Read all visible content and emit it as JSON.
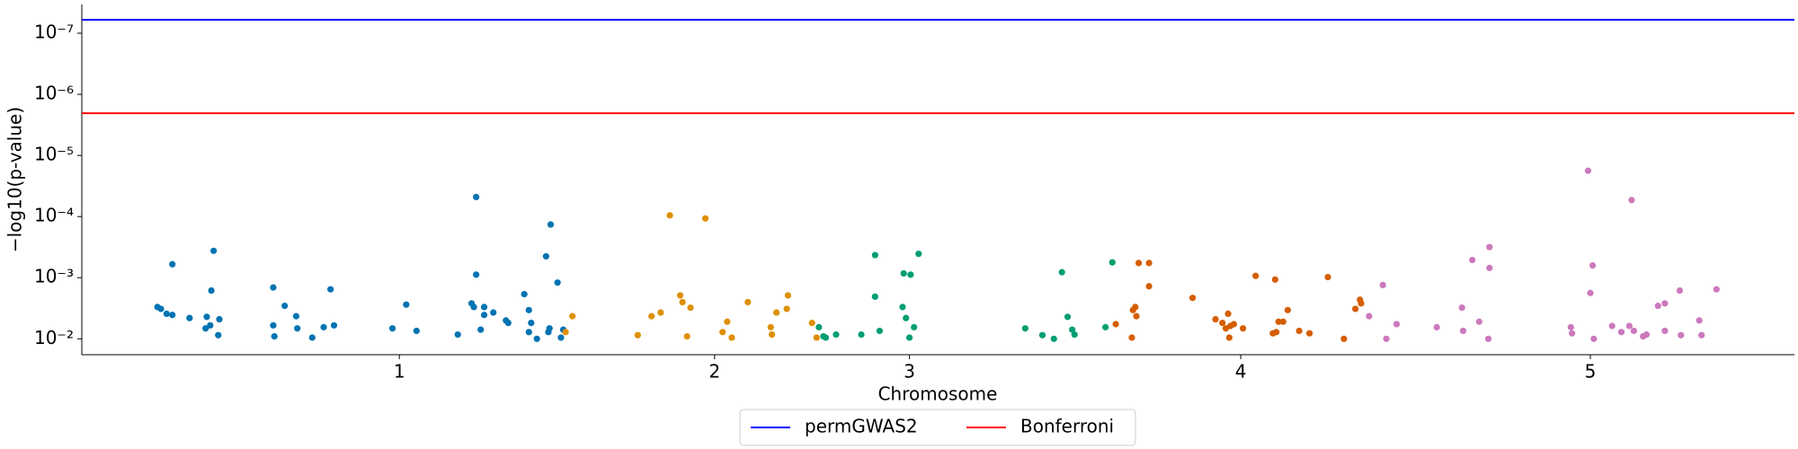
{
  "chart_data": {
    "type": "scatter",
    "xlabel": "Chromosome",
    "ylabel": "−log10(p-value)",
    "xlim": [
      0,
      1494
    ],
    "xticks": [
      {
        "value": 277,
        "label": "1"
      },
      {
        "value": 552,
        "label": "2"
      },
      {
        "value": 722,
        "label": "3"
      },
      {
        "value": 1011,
        "label": "4"
      },
      {
        "value": 1316,
        "label": "5"
      }
    ],
    "ylim": [
      1.74,
      7.47
    ],
    "yticks": [
      {
        "value": 2,
        "label": "10⁻²"
      },
      {
        "value": 3,
        "label": "10⁻³"
      },
      {
        "value": 4,
        "label": "10⁻⁴"
      },
      {
        "value": 5,
        "label": "10⁻⁵"
      },
      {
        "value": 6,
        "label": "10⁻⁶"
      },
      {
        "value": 7,
        "label": "10⁻⁷"
      }
    ],
    "legend": "below",
    "hlines": [
      {
        "name": "permGWAS2",
        "color": "#0000ff",
        "value": 7.22
      },
      {
        "name": "Bonferroni",
        "color": "#ff0000",
        "value": 5.69
      }
    ],
    "series": [
      {
        "color": "#0173b2",
        "x": [
          66,
          69,
          74,
          79,
          79,
          94,
          108,
          109,
          113,
          115,
          112,
          119,
          120,
          167,
          167,
          168,
          177,
          187,
          188,
          201,
          211,
          217,
          220,
          271,
          283,
          292,
          328,
          340,
          342,
          344,
          344,
          348,
          351,
          351,
          359,
          370,
          372,
          386,
          390,
          390,
          392,
          397,
          405,
          407,
          408,
          409,
          415,
          418,
          420
        ],
        "values": [
          2.52,
          2.49,
          2.41,
          2.39,
          3.22,
          2.34,
          2.17,
          2.36,
          2.79,
          3.44,
          2.22,
          2.06,
          2.32,
          2.84,
          2.22,
          2.04,
          2.54,
          2.37,
          2.17,
          2.02,
          2.19,
          2.81,
          2.22,
          2.17,
          2.56,
          2.13,
          2.07,
          2.58,
          2.52,
          4.32,
          3.05,
          2.15,
          2.52,
          2.39,
          2.43,
          2.3,
          2.26,
          2.73,
          2.47,
          2.11,
          2.26,
          2.0,
          3.35,
          2.11,
          2.17,
          3.87,
          2.92,
          2.02,
          2.15
        ]
      },
      {
        "color": "#de8f05",
        "x": [
          422,
          428,
          485,
          497,
          505,
          513,
          522,
          524,
          528,
          531,
          544,
          559,
          563,
          567,
          581,
          601,
          602,
          606,
          615,
          616,
          637,
          641
        ],
        "values": [
          2.11,
          2.37,
          2.06,
          2.37,
          2.43,
          4.02,
          2.71,
          2.6,
          2.04,
          2.51,
          3.97,
          2.11,
          2.28,
          2.02,
          2.6,
          2.19,
          2.07,
          2.43,
          2.49,
          2.71,
          2.26,
          2.02
        ]
      },
      {
        "color": "#029e73",
        "x": [
          643,
          647,
          649,
          658,
          680,
          692,
          692,
          696,
          716,
          717,
          719,
          722,
          723,
          726,
          730,
          823,
          838,
          848,
          855,
          860,
          864,
          866,
          893,
          899
        ],
        "values": [
          2.19,
          2.04,
          2.02,
          2.07,
          2.07,
          2.69,
          3.37,
          2.13,
          2.52,
          3.07,
          2.34,
          2.02,
          3.05,
          2.19,
          3.39,
          2.17,
          2.06,
          2.0,
          3.09,
          2.36,
          2.15,
          2.07,
          2.19,
          3.25
        ]
      },
      {
        "color": "#d55e00",
        "x": [
          902,
          916,
          917,
          919,
          920,
          922,
          931,
          931,
          969,
          989,
          995,
          998,
          1000,
          1001,
          1002,
          1005,
          1013,
          1024,
          1039,
          1041,
          1042,
          1044,
          1048,
          1052,
          1062,
          1071,
          1087,
          1101,
          1111,
          1115,
          1116
        ],
        "values": [
          2.24,
          2.02,
          2.47,
          2.52,
          2.37,
          3.24,
          2.86,
          3.24,
          2.67,
          2.32,
          2.26,
          2.17,
          2.41,
          2.02,
          2.21,
          2.24,
          2.17,
          3.03,
          2.09,
          2.97,
          2.11,
          2.28,
          2.28,
          2.47,
          2.13,
          2.09,
          3.01,
          2.0,
          2.49,
          2.64,
          2.58
        ]
      },
      {
        "color": "#cc78bc",
        "x": [
          1123,
          1135,
          1138,
          1147,
          1182,
          1204,
          1205,
          1213,
          1219,
          1227,
          1228,
          1228,
          1299,
          1300,
          1314,
          1316,
          1318,
          1319,
          1335,
          1343,
          1350,
          1352,
          1354,
          1362,
          1365,
          1375,
          1381,
          1381,
          1394,
          1395,
          1411,
          1413,
          1426
        ],
        "values": [
          2.37,
          2.88,
          2.0,
          2.24,
          2.19,
          2.51,
          2.13,
          3.29,
          2.28,
          2.0,
          3.5,
          3.16,
          2.19,
          2.09,
          4.75,
          2.75,
          3.2,
          2.0,
          2.21,
          2.11,
          2.21,
          4.27,
          2.13,
          2.04,
          2.07,
          2.54,
          2.58,
          2.13,
          2.79,
          2.06,
          2.3,
          2.06,
          2.81
        ]
      }
    ]
  }
}
